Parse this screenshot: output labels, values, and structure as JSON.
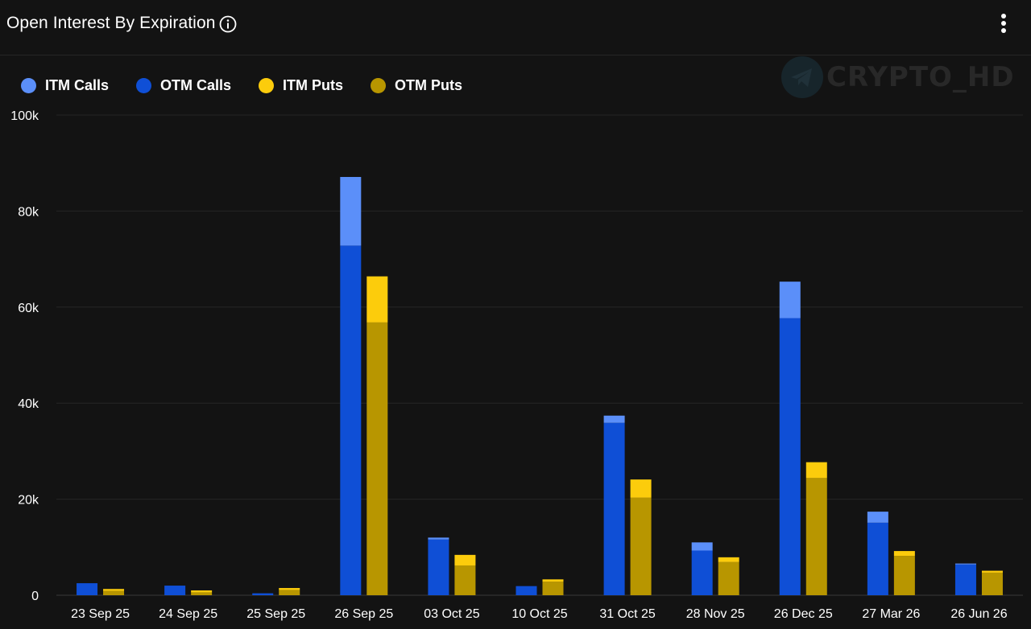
{
  "header": {
    "title": "Open Interest By Expiration",
    "info_icon": "info-icon",
    "menu_icon": "more-vertical-icon"
  },
  "watermark": {
    "icon": "telegram-icon",
    "text": "CRYPTO_HD"
  },
  "legend": [
    {
      "label": "ITM Calls",
      "color": "#5b8ff9"
    },
    {
      "label": "OTM Calls",
      "color": "#0f4fd6"
    },
    {
      "label": "ITM Puts",
      "color": "#fccc0c"
    },
    {
      "label": "OTM Puts",
      "color": "#b89600"
    }
  ],
  "chart_data": {
    "type": "bar",
    "stacked": true,
    "categories": [
      "23 Sep 25",
      "24 Sep 25",
      "25 Sep 25",
      "26 Sep 25",
      "03 Oct 25",
      "10 Oct 25",
      "31 Oct 25",
      "28 Nov 25",
      "26 Dec 25",
      "27 Mar 26",
      "26 Jun 26"
    ],
    "groups": [
      {
        "name": "Calls",
        "stack": [
          {
            "name": "OTM Calls",
            "color": "#0f4fd6",
            "values": [
              2500,
              2000,
              400,
              72800,
              11600,
              1900,
              35900,
              9300,
              57700,
              15100,
              6400
            ]
          },
          {
            "name": "ITM Calls",
            "color": "#5b8ff9",
            "values": [
              0,
              0,
              0,
              14300,
              400,
              0,
              1500,
              1700,
              7600,
              2300,
              200
            ]
          }
        ]
      },
      {
        "name": "Puts",
        "stack": [
          {
            "name": "OTM Puts",
            "color": "#b89600",
            "values": [
              900,
              600,
              1100,
              56800,
              6200,
              2800,
              20300,
              6900,
              24400,
              8200,
              4700
            ]
          },
          {
            "name": "ITM Puts",
            "color": "#fccc0c",
            "values": [
              400,
              400,
              400,
              9600,
              2200,
              500,
              3800,
              1000,
              3300,
              1000,
              400
            ]
          }
        ]
      }
    ],
    "y_ticks": [
      "0",
      "20k",
      "40k",
      "60k",
      "80k",
      "100k"
    ],
    "ylim": [
      0,
      100000
    ],
    "grid": true,
    "legend_position": "top-left"
  }
}
